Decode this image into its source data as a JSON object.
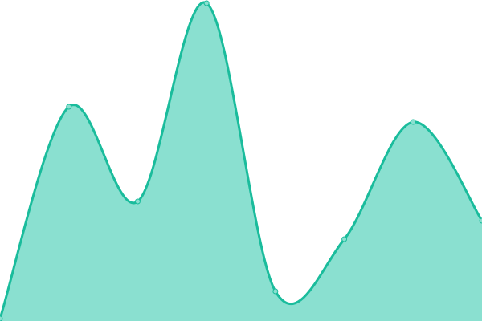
{
  "chart_data": {
    "type": "area",
    "title": "",
    "xlabel": "",
    "ylabel": "",
    "x": [
      0,
      1,
      2,
      3,
      4,
      5,
      6,
      7
    ],
    "series": [
      {
        "values": [
          3,
          267,
          149,
          396,
          37,
          102,
          248,
          125
        ]
      }
    ],
    "xlim": [
      0,
      7
    ],
    "ylim": [
      0,
      400
    ],
    "grid": false,
    "axes_visible": false,
    "smooth": true,
    "colors": {
      "line": "#1abc9c",
      "fill": "#8ae0d0",
      "marker_fill": "#8ae0d0"
    }
  }
}
